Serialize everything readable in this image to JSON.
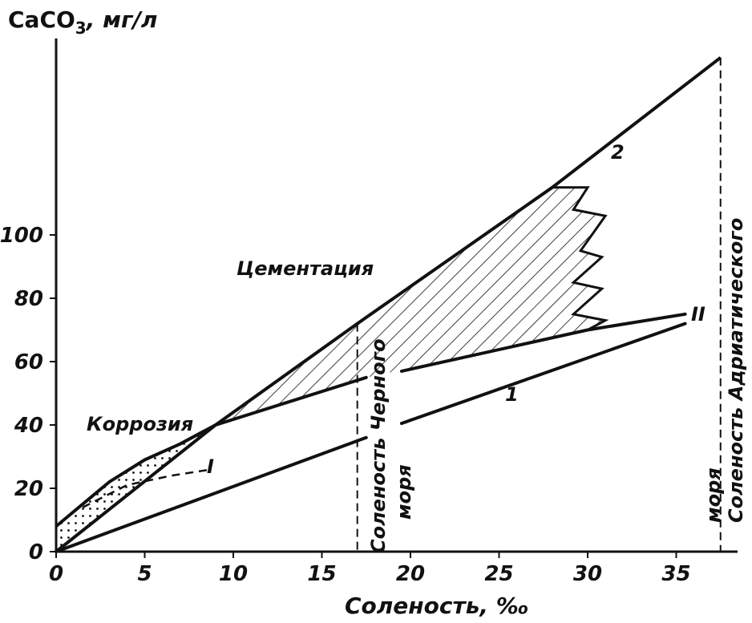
{
  "chart_data": {
    "type": "line",
    "y_axis_title": "CaCO3, мг/л",
    "y_axis_title_parts": {
      "base": "CaCO",
      "sub": "3",
      "unit": ", мг/л"
    },
    "x_axis_title": "Соленость, ‰",
    "x_ticks": [
      0,
      5,
      10,
      15,
      20,
      25,
      30,
      35
    ],
    "x_tick_labels": [
      "0",
      "5",
      "10",
      "15",
      "20",
      "25",
      "30",
      "35"
    ],
    "y_ticks": [
      0,
      20,
      40,
      60,
      80,
      100
    ],
    "y_tick_labels": [
      "0",
      "20",
      "40",
      "60",
      "80",
      "100"
    ],
    "xlim": [
      0,
      39
    ],
    "ylim": [
      0,
      162
    ],
    "series": [
      {
        "name": "1",
        "points": [
          [
            0,
            0
          ],
          [
            17.5,
            36
          ],
          [
            35.5,
            72
          ]
        ]
      },
      {
        "name": "2",
        "points": [
          [
            0,
            0
          ],
          [
            9,
            40
          ],
          [
            17,
            72
          ],
          [
            28,
            115
          ],
          [
            37.5,
            156
          ]
        ]
      },
      {
        "name": "II",
        "points": [
          [
            9,
            40
          ],
          [
            17.5,
            55
          ],
          [
            30,
            70
          ],
          [
            35.5,
            75
          ]
        ]
      },
      {
        "name": "I",
        "points": [
          [
            1.5,
            14
          ],
          [
            4,
            21
          ],
          [
            6.5,
            24
          ],
          [
            8.8,
            26
          ]
        ],
        "dashed": true
      },
      {
        "name": "",
        "points": [
          [
            0,
            8
          ],
          [
            3,
            22
          ],
          [
            5,
            29
          ],
          [
            7,
            34
          ],
          [
            9,
            40
          ]
        ]
      }
    ],
    "regions": [
      {
        "name": "Цементация",
        "type": "hatched"
      },
      {
        "name": "Коррозия",
        "type": "dotted"
      }
    ],
    "verticals": [
      {
        "label": "Соленость Черного моря",
        "label_lines": [
          "Соленость Черного",
          "моря"
        ],
        "x": 17
      },
      {
        "label": "Соленость Адриатического моря",
        "label_lines": [
          "Соленость Адриатического",
          "моря"
        ],
        "x": 37.5
      }
    ],
    "annotations": [
      "Цементация",
      "Коррозия",
      "1",
      "2",
      "I",
      "II"
    ],
    "grid": false
  }
}
